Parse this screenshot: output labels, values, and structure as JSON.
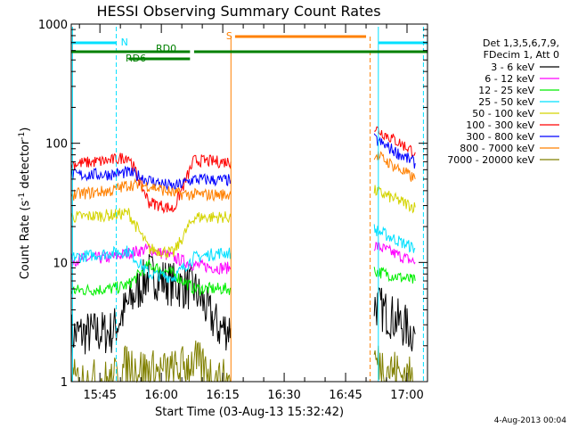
{
  "chart_data": {
    "type": "line",
    "title": "HESSI Observing Summary Count Rates",
    "xlabel": "Start Time (03-Aug-13 15:32:42)",
    "ylabel_main": "Count Rate (s",
    "ylabel_sup1": "-1",
    "ylabel_mid": " detector",
    "ylabel_sup2": "-1",
    "ylabel_end": ")",
    "y_scale": "log",
    "ylim": [
      1,
      1000
    ],
    "xlim": [
      "15:38",
      "17:05"
    ],
    "x_ticks": [
      "15:45",
      "16:00",
      "16:15",
      "16:30",
      "16:45",
      "17:00"
    ],
    "y_ticks": [
      "1",
      "10",
      "100",
      "1000"
    ],
    "legend_position": "right",
    "legend_header": [
      "Det 1,3,5,6,7,9,",
      "FDecim 1, Att 0"
    ],
    "series": [
      {
        "name": "3 - 6 keV",
        "color": "#000000",
        "points": [
          [
            "15:38",
            2.5
          ],
          [
            "15:48",
            2.6
          ],
          [
            "15:52",
            4.5
          ],
          [
            "15:57",
            8.0
          ],
          [
            "16:03",
            6.5
          ],
          [
            "16:08",
            6.0
          ],
          [
            "16:14",
            2.8
          ],
          [
            "16:17",
            2.8
          ],
          [
            "16:52",
            4.5
          ],
          [
            "17:02",
            2.5
          ]
        ]
      },
      {
        "name": "6 - 12 keV",
        "color": "#ff00ff",
        "points": [
          [
            "15:38",
            10.5
          ],
          [
            "15:48",
            11.0
          ],
          [
            "15:52",
            12.0
          ],
          [
            "15:57",
            13.0
          ],
          [
            "16:03",
            11.0
          ],
          [
            "16:08",
            9.5
          ],
          [
            "16:14",
            9.0
          ],
          [
            "16:17",
            9.0
          ],
          [
            "16:52",
            14.0
          ],
          [
            "17:02",
            10.0
          ]
        ]
      },
      {
        "name": "12 - 25 keV",
        "color": "#00ee00",
        "points": [
          [
            "15:38",
            5.8
          ],
          [
            "15:48",
            6.0
          ],
          [
            "15:52",
            6.5
          ],
          [
            "15:57",
            9.5
          ],
          [
            "16:03",
            8.0
          ],
          [
            "16:08",
            6.0
          ],
          [
            "16:14",
            6.0
          ],
          [
            "16:17",
            6.0
          ],
          [
            "16:52",
            8.5
          ],
          [
            "17:02",
            7.0
          ]
        ]
      },
      {
        "name": "25 - 50 keV",
        "color": "#00e0ff",
        "points": [
          [
            "15:38",
            11.0
          ],
          [
            "15:48",
            12.0
          ],
          [
            "15:52",
            12.5
          ],
          [
            "15:57",
            8.0
          ],
          [
            "16:03",
            7.5
          ],
          [
            "16:08",
            11.0
          ],
          [
            "16:14",
            12.0
          ],
          [
            "16:17",
            12.0
          ],
          [
            "16:52",
            19.0
          ],
          [
            "17:02",
            13.0
          ]
        ]
      },
      {
        "name": "50 - 100 keV",
        "color": "#d4d400",
        "points": [
          [
            "15:38",
            24.0
          ],
          [
            "15:48",
            25.0
          ],
          [
            "15:52",
            26.0
          ],
          [
            "15:57",
            13.0
          ],
          [
            "16:03",
            12.0
          ],
          [
            "16:08",
            24.0
          ],
          [
            "16:14",
            24.0
          ],
          [
            "16:17",
            24.0
          ],
          [
            "16:52",
            40.0
          ],
          [
            "17:02",
            29.0
          ]
        ]
      },
      {
        "name": "100 - 300 keV",
        "color": "#ff0000",
        "points": [
          [
            "15:38",
            67.0
          ],
          [
            "15:48",
            72.0
          ],
          [
            "15:52",
            78.0
          ],
          [
            "15:57",
            32.0
          ],
          [
            "16:03",
            28.0
          ],
          [
            "16:08",
            72.0
          ],
          [
            "16:14",
            70.0
          ],
          [
            "16:17",
            70.0
          ],
          [
            "16:52",
            135.0
          ],
          [
            "17:02",
            84.0
          ]
        ]
      },
      {
        "name": "300 - 800 keV",
        "color": "#0000ff",
        "points": [
          [
            "15:38",
            54.0
          ],
          [
            "15:48",
            55.0
          ],
          [
            "15:52",
            57.0
          ],
          [
            "15:57",
            49.0
          ],
          [
            "16:03",
            43.0
          ],
          [
            "16:08",
            50.0
          ],
          [
            "16:14",
            49.0
          ],
          [
            "16:17",
            49.0
          ],
          [
            "16:52",
            108.0
          ],
          [
            "17:02",
            68.0
          ]
        ]
      },
      {
        "name": "800 - 7000 keV",
        "color": "#ff8000",
        "points": [
          [
            "15:38",
            37.0
          ],
          [
            "15:48",
            40.0
          ],
          [
            "15:52",
            45.0
          ],
          [
            "15:57",
            44.0
          ],
          [
            "16:03",
            38.0
          ],
          [
            "16:08",
            37.0
          ],
          [
            "16:14",
            37.0
          ],
          [
            "16:17",
            37.0
          ],
          [
            "16:52",
            82.0
          ],
          [
            "17:02",
            50.0
          ]
        ]
      },
      {
        "name": "7000 - 20000 keV",
        "color": "#808000",
        "points": [
          [
            "15:38",
            1.0
          ],
          [
            "15:48",
            1.0
          ],
          [
            "15:52",
            1.4
          ],
          [
            "15:57",
            1.2
          ],
          [
            "16:03",
            1.2
          ],
          [
            "16:08",
            1.5
          ],
          [
            "16:14",
            1.0
          ],
          [
            "16:17",
            1.0
          ],
          [
            "16:52",
            1.5
          ],
          [
            "17:02",
            1.0
          ]
        ]
      }
    ],
    "annotations": {
      "N": {
        "label": "N",
        "color": "#00e0ff",
        "segments": [
          [
            "15:38",
            "15:49"
          ],
          [
            "16:53",
            "17:05"
          ]
        ]
      },
      "S": {
        "label": "S",
        "color": "#ff8000",
        "segments": [
          [
            "16:18",
            "16:50"
          ]
        ]
      },
      "RD0": {
        "label": "RD0",
        "color": "#008000"
      },
      "RD6": {
        "label": "RD6",
        "color": "#008000"
      }
    },
    "saa_interval": [
      "16:17",
      "16:51"
    ],
    "date_stamp": "4-Aug-2013 00:04"
  }
}
